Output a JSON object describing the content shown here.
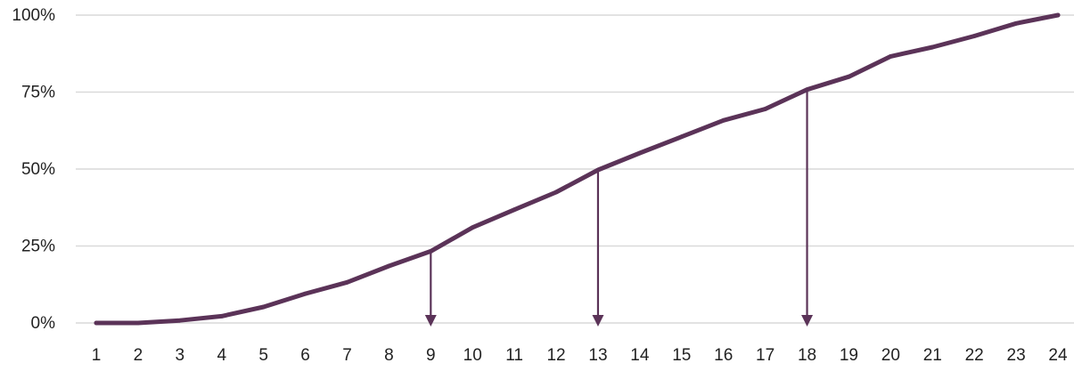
{
  "chart_data": {
    "type": "line",
    "title": "",
    "xlabel": "",
    "ylabel": "",
    "categories": [
      "1",
      "2",
      "3",
      "4",
      "5",
      "6",
      "7",
      "8",
      "9",
      "10",
      "11",
      "12",
      "13",
      "14",
      "15",
      "16",
      "17",
      "18",
      "19",
      "20",
      "21",
      "22",
      "23",
      "24"
    ],
    "series": [
      {
        "values": [
          0,
          0,
          0.8,
          2.2,
          5.2,
          9.5,
          13.2,
          18.5,
          23.3,
          31,
          36.8,
          42.5,
          49.7,
          55.2,
          60.5,
          65.8,
          69.5,
          75.8,
          80,
          86.6,
          89.6,
          93.2,
          97.3,
          100
        ],
        "color": "#5b3358"
      }
    ],
    "ylim": [
      0,
      100
    ],
    "yticks": [
      0,
      25,
      50,
      75,
      100
    ],
    "ytick_labels": [
      "0%",
      "25%",
      "50%",
      "75%",
      "100%"
    ],
    "grid": true,
    "legend": "none",
    "annotations": [
      {
        "type": "arrow-down",
        "x": "9",
        "y": 23.3
      },
      {
        "type": "arrow-down",
        "x": "13",
        "y": 49.7
      },
      {
        "type": "arrow-down",
        "x": "18",
        "y": 75.8
      }
    ]
  }
}
